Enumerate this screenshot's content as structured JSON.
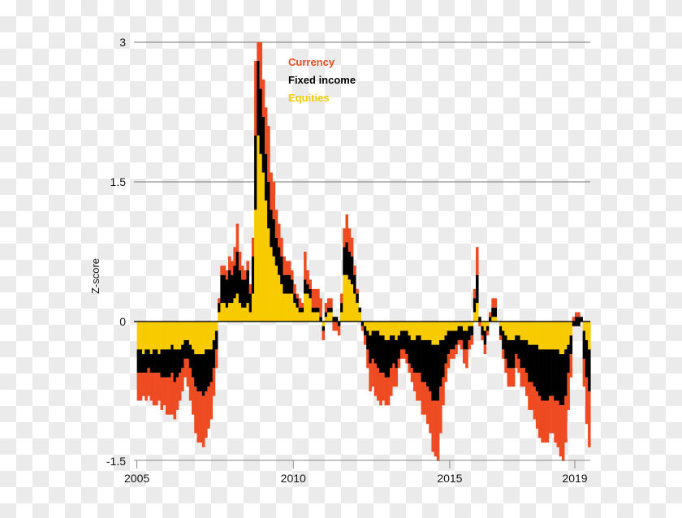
{
  "chart_data": {
    "type": "area",
    "stacked": true,
    "title": "",
    "xlabel": "",
    "ylabel": "Z-score",
    "ylim": [
      -1.5,
      3
    ],
    "xlim": [
      2005,
      2019.5
    ],
    "yticks": [
      "3",
      "1.5",
      "0",
      "-1.5"
    ],
    "ytick_values": [
      3,
      1.5,
      0,
      -1.5
    ],
    "xticks": [
      "2005",
      "2010",
      "2015",
      "2019"
    ],
    "xtick_values": [
      2005,
      2010,
      2015,
      2019
    ],
    "grid": "horizontal",
    "legend_position": "top-center",
    "x_start": "2005-01",
    "x_frequency": "monthly",
    "series": [
      {
        "name": "Equities",
        "color": "#f7cb00",
        "values": [
          -0.3,
          -0.3,
          -0.35,
          -0.3,
          -0.3,
          -0.35,
          -0.3,
          -0.3,
          -0.35,
          -0.3,
          -0.3,
          -0.3,
          -0.3,
          -0.25,
          -0.3,
          -0.3,
          -0.3,
          -0.25,
          -0.2,
          -0.2,
          -0.25,
          -0.3,
          -0.35,
          -0.35,
          -0.35,
          -0.35,
          -0.3,
          -0.3,
          -0.3,
          -0.2,
          -0.1,
          0.1,
          0.2,
          0.2,
          0.15,
          0.2,
          0.2,
          0.25,
          0.3,
          0.2,
          0.15,
          0.15,
          0.2,
          0.1,
          0.3,
          1.2,
          2.0,
          1.8,
          1.6,
          1.3,
          1.0,
          0.8,
          0.7,
          0.6,
          0.5,
          0.4,
          0.3,
          0.3,
          0.3,
          0.3,
          0.2,
          0.15,
          0.1,
          0.1,
          0.3,
          0.3,
          0.25,
          0.1,
          0.1,
          0.1,
          0.0,
          -0.05,
          0.05,
          0.1,
          0.1,
          0.05,
          0.05,
          0.0,
          0.1,
          0.5,
          0.5,
          0.45,
          0.4,
          0.3,
          0.2,
          0.1,
          0.0,
          -0.05,
          -0.1,
          -0.15,
          -0.1,
          -0.1,
          -0.1,
          -0.15,
          -0.15,
          -0.2,
          -0.2,
          -0.15,
          -0.15,
          -0.2,
          -0.15,
          -0.1,
          -0.1,
          -0.1,
          -0.15,
          -0.2,
          -0.2,
          -0.15,
          -0.15,
          -0.2,
          -0.2,
          -0.2,
          -0.2,
          -0.25,
          -0.25,
          -0.25,
          -0.2,
          -0.2,
          -0.15,
          -0.1,
          -0.1,
          -0.1,
          -0.1,
          -0.05,
          -0.05,
          -0.1,
          -0.1,
          -0.05,
          -0.05,
          0.1,
          0.2,
          0.05,
          -0.05,
          -0.1,
          -0.05,
          0.0,
          0.05,
          0.05,
          0.0,
          -0.05,
          -0.1,
          -0.15,
          -0.2,
          -0.2,
          -0.2,
          -0.15,
          -0.15,
          -0.2,
          -0.2,
          -0.2,
          -0.25,
          -0.25,
          -0.25,
          -0.25,
          -0.3,
          -0.3,
          -0.3,
          -0.3,
          -0.3,
          -0.3,
          -0.3,
          -0.3,
          -0.35,
          -0.35,
          -0.3,
          -0.25,
          -0.15,
          -0.05,
          -0.05,
          -0.05,
          0.0,
          -0.1,
          -0.2,
          -0.3
        ]
      },
      {
        "name": "Fixed income",
        "color": "#000000",
        "values": [
          -0.25,
          -0.25,
          -0.2,
          -0.25,
          -0.2,
          -0.2,
          -0.25,
          -0.25,
          -0.2,
          -0.3,
          -0.3,
          -0.3,
          -0.3,
          -0.3,
          -0.35,
          -0.3,
          -0.25,
          -0.25,
          -0.2,
          -0.2,
          -0.25,
          -0.3,
          -0.35,
          -0.4,
          -0.4,
          -0.45,
          -0.45,
          -0.4,
          -0.35,
          -0.3,
          -0.2,
          0.1,
          0.3,
          0.3,
          0.3,
          0.35,
          0.3,
          0.35,
          0.45,
          0.35,
          0.3,
          0.3,
          0.35,
          0.2,
          0.4,
          0.8,
          0.8,
          0.7,
          0.6,
          0.5,
          0.5,
          0.4,
          0.4,
          0.3,
          0.3,
          0.3,
          0.2,
          0.2,
          0.2,
          0.15,
          0.1,
          0.1,
          0.05,
          0.05,
          0.15,
          0.1,
          0.1,
          0.05,
          0.05,
          0.05,
          0.05,
          -0.05,
          0.05,
          0.05,
          0.05,
          -0.05,
          -0.05,
          -0.05,
          0.1,
          0.3,
          0.35,
          0.3,
          0.3,
          0.2,
          0.1,
          0.05,
          -0.05,
          -0.1,
          -0.2,
          -0.3,
          -0.3,
          -0.35,
          -0.4,
          -0.4,
          -0.4,
          -0.4,
          -0.4,
          -0.35,
          -0.3,
          -0.3,
          -0.25,
          -0.2,
          -0.2,
          -0.25,
          -0.3,
          -0.3,
          -0.35,
          -0.4,
          -0.4,
          -0.45,
          -0.45,
          -0.5,
          -0.55,
          -0.6,
          -0.6,
          -0.6,
          -0.5,
          -0.4,
          -0.3,
          -0.25,
          -0.2,
          -0.2,
          -0.15,
          -0.15,
          -0.15,
          -0.2,
          -0.2,
          -0.15,
          -0.1,
          0.15,
          0.3,
          -0.05,
          -0.1,
          -0.15,
          -0.05,
          0.05,
          0.1,
          0.1,
          0.0,
          -0.1,
          -0.2,
          -0.25,
          -0.3,
          -0.3,
          -0.3,
          -0.2,
          -0.25,
          -0.3,
          -0.3,
          -0.35,
          -0.4,
          -0.4,
          -0.45,
          -0.5,
          -0.5,
          -0.55,
          -0.55,
          -0.55,
          -0.5,
          -0.5,
          -0.55,
          -0.55,
          -0.55,
          -0.55,
          -0.5,
          -0.3,
          -0.2,
          0.05,
          0.1,
          0.1,
          0.05,
          -0.3,
          -0.4,
          -0.45
        ]
      },
      {
        "name": "Currency",
        "color": "#ee4b23",
        "values": [
          -0.3,
          -0.3,
          -0.25,
          -0.3,
          -0.3,
          -0.3,
          -0.35,
          -0.35,
          -0.3,
          -0.35,
          -0.3,
          -0.4,
          -0.4,
          -0.45,
          -0.4,
          -0.35,
          -0.3,
          -0.25,
          -0.2,
          -0.3,
          -0.35,
          -0.4,
          -0.5,
          -0.55,
          -0.55,
          -0.55,
          -0.5,
          -0.45,
          -0.4,
          -0.3,
          -0.2,
          0.05,
          0.1,
          0.1,
          0.1,
          0.15,
          0.15,
          0.2,
          0.3,
          0.2,
          0.15,
          0.1,
          0.1,
          0.1,
          0.2,
          0.8,
          0.5,
          0.5,
          0.4,
          0.5,
          0.6,
          0.4,
          0.4,
          0.3,
          0.25,
          0.2,
          0.2,
          0.15,
          0.15,
          0.1,
          0.1,
          0.05,
          0.1,
          0.05,
          0.3,
          0.15,
          0.1,
          0.2,
          0.2,
          0.2,
          0.2,
          -0.1,
          0.1,
          0.1,
          0.1,
          -0.1,
          -0.1,
          -0.1,
          0.1,
          0.2,
          0.3,
          0.25,
          0.2,
          0.1,
          0.05,
          0.0,
          -0.05,
          -0.1,
          -0.2,
          -0.3,
          -0.3,
          -0.35,
          -0.35,
          -0.35,
          -0.3,
          -0.3,
          -0.3,
          -0.3,
          -0.25,
          -0.2,
          -0.1,
          -0.1,
          -0.1,
          -0.1,
          -0.1,
          -0.15,
          -0.2,
          -0.3,
          -0.3,
          -0.35,
          -0.35,
          -0.4,
          -0.45,
          -0.55,
          -0.6,
          -0.65,
          -0.5,
          -0.3,
          -0.2,
          -0.15,
          -0.1,
          -0.1,
          -0.1,
          -0.05,
          -0.1,
          -0.15,
          -0.2,
          -0.1,
          -0.1,
          0.1,
          0.3,
          -0.05,
          -0.05,
          -0.1,
          -0.05,
          0.05,
          0.1,
          0.1,
          0.0,
          -0.05,
          -0.1,
          -0.15,
          -0.2,
          -0.2,
          -0.2,
          -0.15,
          -0.15,
          -0.2,
          -0.2,
          -0.25,
          -0.3,
          -0.3,
          -0.35,
          -0.4,
          -0.45,
          -0.45,
          -0.45,
          -0.45,
          -0.4,
          -0.4,
          -0.45,
          -0.5,
          -0.55,
          -0.6,
          -0.5,
          -0.4,
          -0.25,
          0.05,
          0.05,
          0.05,
          0.0,
          -0.3,
          -0.5,
          -0.6
        ]
      }
    ]
  }
}
